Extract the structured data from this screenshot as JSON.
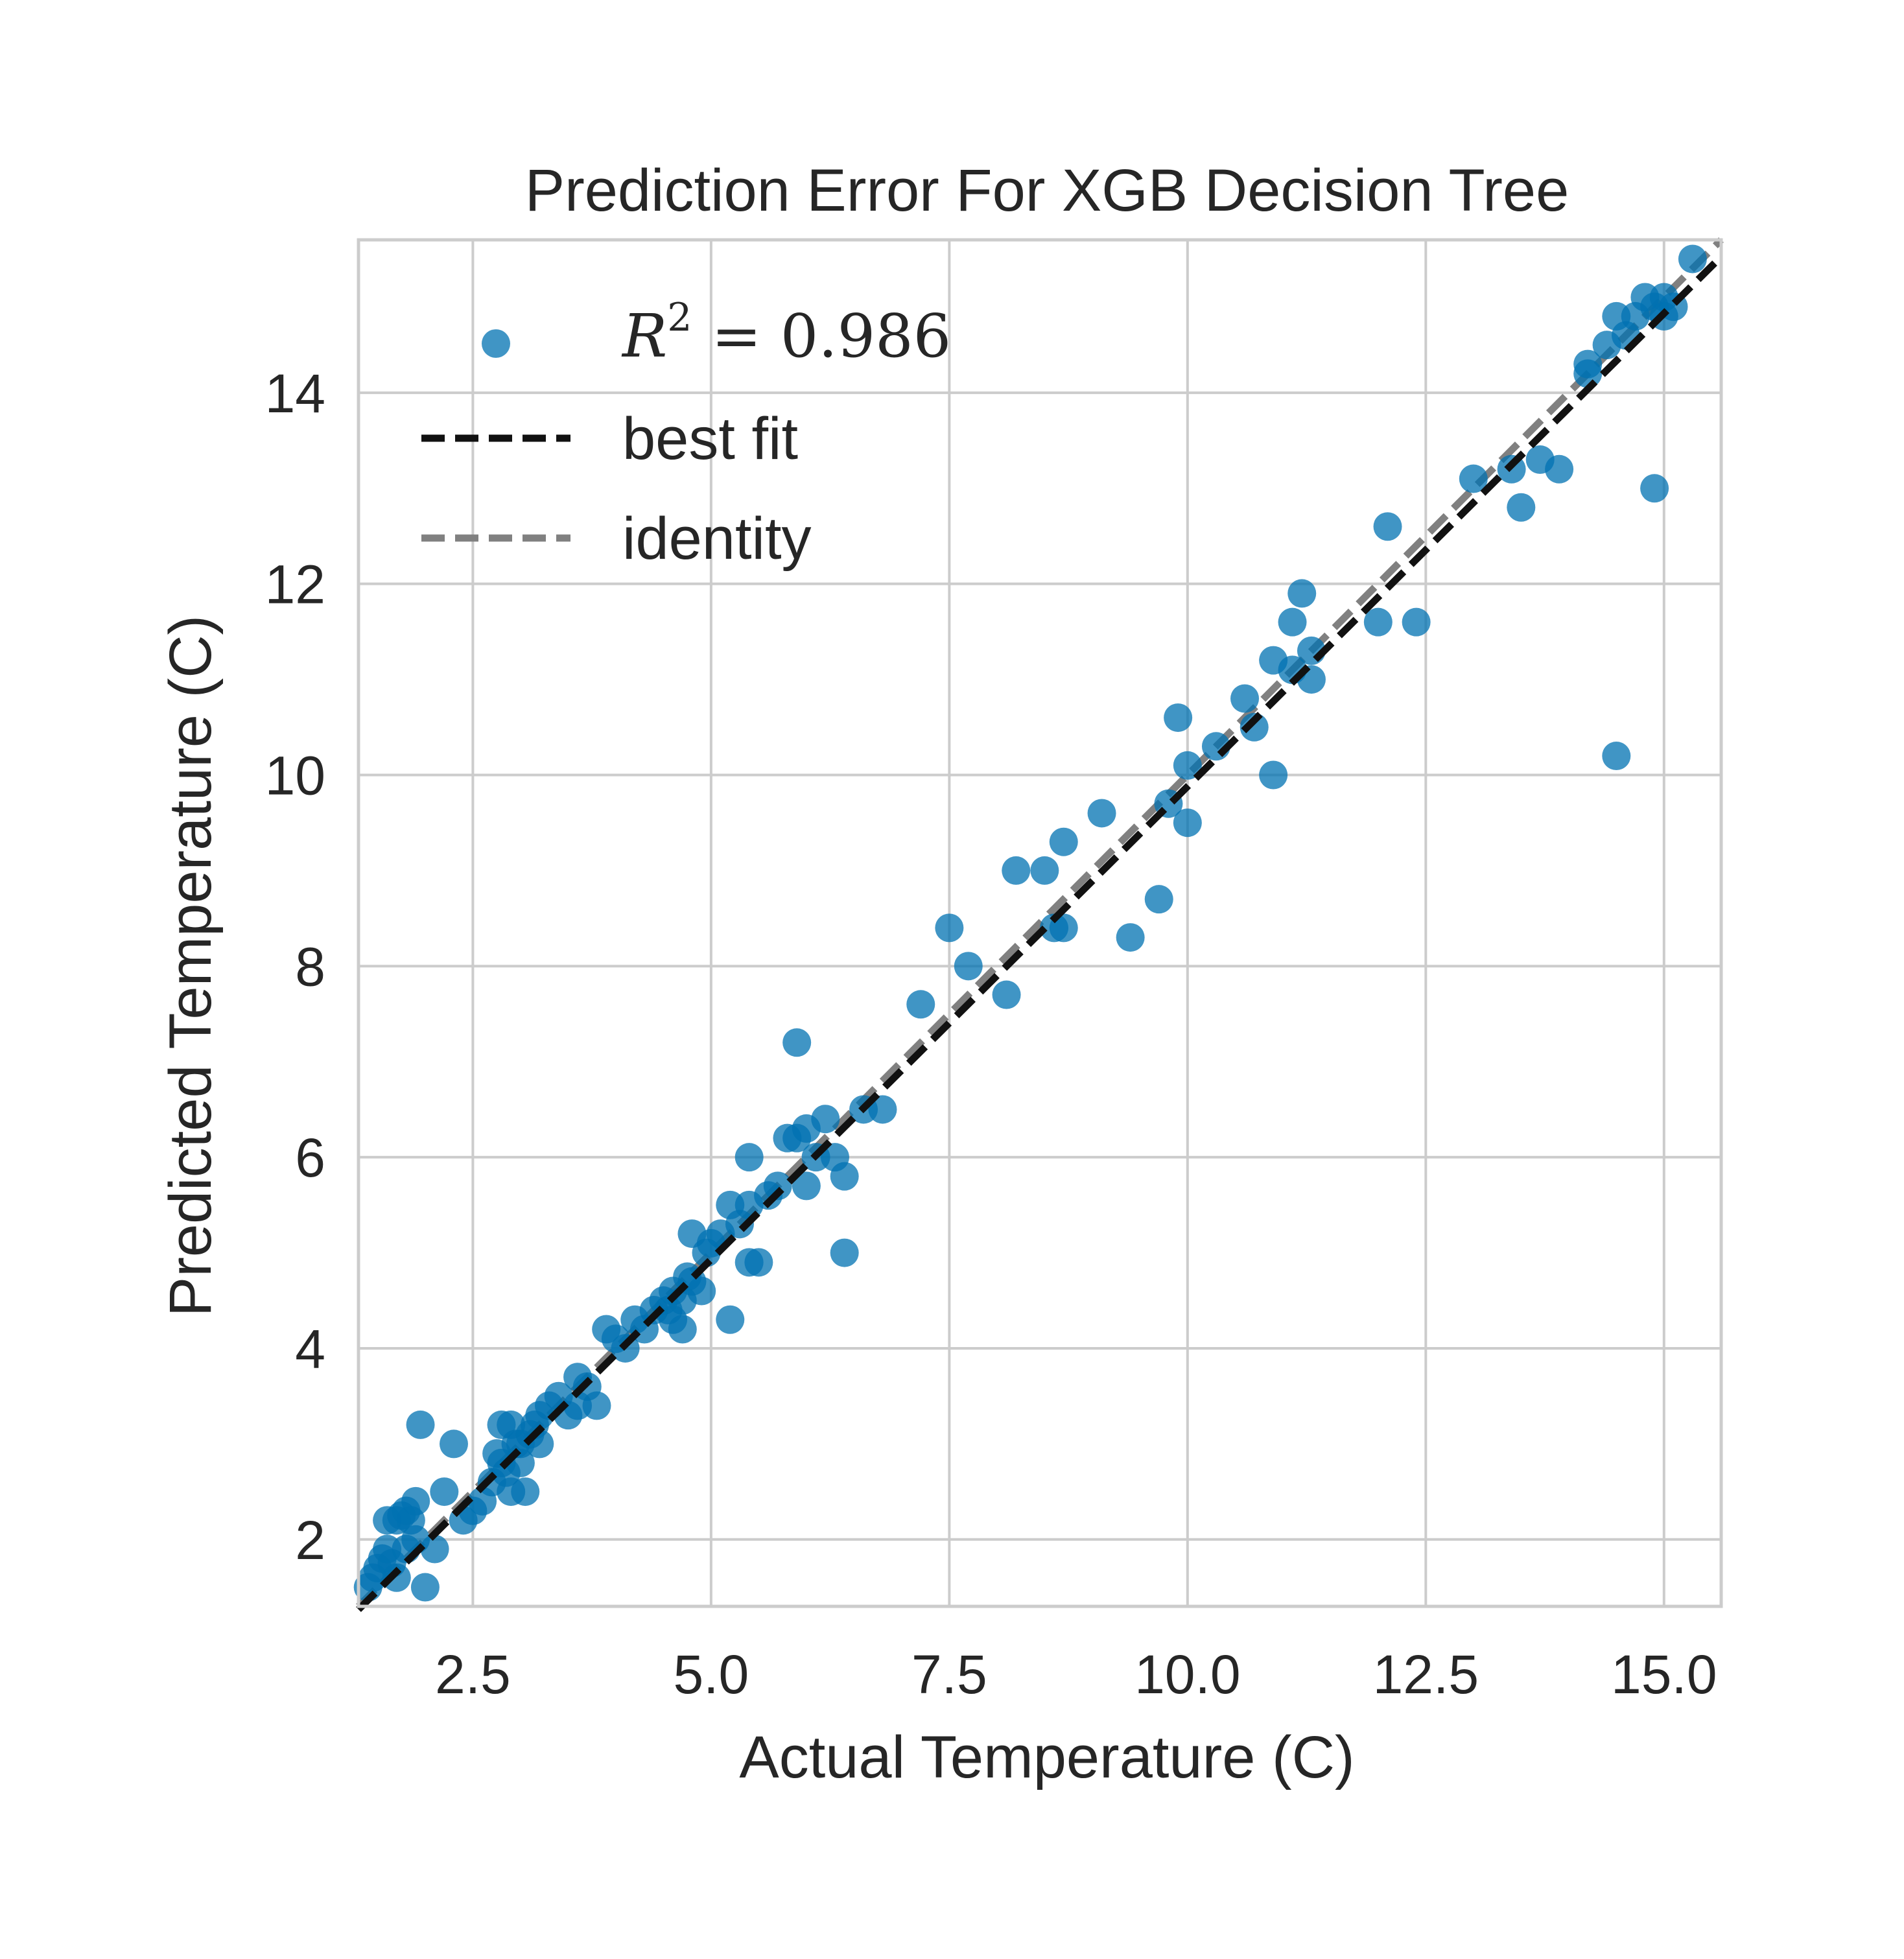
{
  "chart_data": {
    "type": "scatter",
    "title": "Prediction Error For XGB Decision Tree",
    "xlabel": "Actual Temperature (C)",
    "ylabel": "Predicted Temperature (C)",
    "xlim": [
      1.3,
      15.6
    ],
    "ylim": [
      1.3,
      15.6
    ],
    "xticks": [
      2.5,
      5.0,
      7.5,
      10.0,
      12.5,
      15.0
    ],
    "xtick_labels": [
      "2.5",
      "5.0",
      "7.5",
      "10.0",
      "12.5",
      "15.0"
    ],
    "yticks": [
      2,
      4,
      6,
      8,
      10,
      12,
      14
    ],
    "ytick_labels": [
      "2",
      "4",
      "6",
      "8",
      "10",
      "12",
      "14"
    ],
    "grid": true,
    "legend_position": "top-left",
    "colors": {
      "points": "#0072b2",
      "best_fit": "#111111",
      "identity": "#808080",
      "grid": "#cccccc"
    },
    "legend": {
      "r2_prefix": "R",
      "r2_power": "2",
      "r2_value": "= 0.986",
      "best_fit_label": "best fit",
      "identity_label": "identity"
    },
    "best_fit": {
      "slope": 0.99,
      "intercept": -0.02
    },
    "points": [
      [
        1.4,
        1.5
      ],
      [
        1.5,
        1.7
      ],
      [
        1.6,
        2.2
      ],
      [
        1.7,
        2.2
      ],
      [
        1.8,
        1.9
      ],
      [
        1.8,
        2.3
      ],
      [
        1.9,
        2.4
      ],
      [
        1.9,
        2.0
      ],
      [
        1.95,
        3.2
      ],
      [
        2.0,
        1.5
      ],
      [
        1.7,
        1.6
      ],
      [
        1.6,
        1.9
      ],
      [
        1.55,
        1.8
      ],
      [
        1.65,
        1.75
      ],
      [
        1.75,
        2.25
      ],
      [
        1.85,
        2.2
      ],
      [
        2.1,
        1.9
      ],
      [
        1.45,
        1.6
      ],
      [
        2.2,
        2.5
      ],
      [
        2.3,
        3.0
      ],
      [
        2.4,
        2.2
      ],
      [
        2.5,
        2.3
      ],
      [
        2.6,
        2.4
      ],
      [
        2.7,
        2.6
      ],
      [
        2.8,
        2.8
      ],
      [
        2.8,
        3.2
      ],
      [
        2.9,
        3.2
      ],
      [
        2.9,
        2.5
      ],
      [
        3.0,
        2.8
      ],
      [
        3.0,
        3.0
      ],
      [
        3.05,
        2.5
      ],
      [
        3.1,
        3.1
      ],
      [
        3.2,
        3.3
      ],
      [
        3.2,
        3.0
      ],
      [
        3.3,
        3.4
      ],
      [
        3.4,
        3.5
      ],
      [
        3.5,
        3.3
      ],
      [
        3.6,
        3.4
      ],
      [
        3.6,
        3.7
      ],
      [
        3.7,
        3.6
      ],
      [
        3.8,
        3.4
      ],
      [
        2.85,
        2.7
      ],
      [
        2.75,
        2.9
      ],
      [
        2.95,
        3.0
      ],
      [
        3.15,
        3.2
      ],
      [
        3.9,
        4.2
      ],
      [
        4.0,
        4.1
      ],
      [
        4.1,
        4.0
      ],
      [
        4.2,
        4.3
      ],
      [
        4.3,
        4.2
      ],
      [
        4.4,
        4.4
      ],
      [
        4.5,
        4.5
      ],
      [
        4.6,
        4.6
      ],
      [
        4.6,
        4.3
      ],
      [
        4.7,
        4.5
      ],
      [
        4.7,
        4.2
      ],
      [
        4.8,
        4.7
      ],
      [
        4.8,
        5.2
      ],
      [
        4.9,
        4.6
      ],
      [
        4.95,
        5.0
      ],
      [
        5.0,
        5.1
      ],
      [
        5.1,
        5.2
      ],
      [
        5.2,
        4.3
      ],
      [
        5.2,
        5.5
      ],
      [
        5.3,
        5.3
      ],
      [
        5.4,
        6.0
      ],
      [
        5.4,
        5.5
      ],
      [
        5.4,
        4.9
      ],
      [
        5.5,
        4.9
      ],
      [
        5.6,
        5.6
      ],
      [
        5.7,
        5.7
      ],
      [
        5.8,
        6.2
      ],
      [
        5.9,
        6.2
      ],
      [
        5.9,
        7.2
      ],
      [
        6.0,
        5.7
      ],
      [
        6.0,
        6.3
      ],
      [
        6.1,
        6.0
      ],
      [
        6.2,
        6.4
      ],
      [
        6.3,
        6.0
      ],
      [
        6.4,
        5.8
      ],
      [
        6.4,
        5.0
      ],
      [
        6.6,
        6.5
      ],
      [
        6.8,
        6.5
      ],
      [
        4.55,
        4.4
      ],
      [
        4.75,
        4.75
      ],
      [
        7.2,
        7.6
      ],
      [
        7.5,
        8.4
      ],
      [
        7.7,
        8.0
      ],
      [
        8.1,
        7.7
      ],
      [
        8.2,
        9.0
      ],
      [
        8.5,
        9.0
      ],
      [
        8.6,
        8.4
      ],
      [
        8.7,
        8.4
      ],
      [
        8.7,
        9.3
      ],
      [
        9.1,
        9.6
      ],
      [
        9.4,
        8.3
      ],
      [
        9.7,
        8.7
      ],
      [
        9.8,
        9.7
      ],
      [
        9.9,
        10.6
      ],
      [
        10.0,
        9.5
      ],
      [
        10.0,
        10.1
      ],
      [
        10.3,
        10.3
      ],
      [
        10.6,
        10.8
      ],
      [
        10.7,
        10.5
      ],
      [
        10.9,
        10.0
      ],
      [
        10.9,
        11.2
      ],
      [
        11.1,
        11.6
      ],
      [
        11.1,
        11.1
      ],
      [
        11.2,
        11.9
      ],
      [
        11.3,
        11.3
      ],
      [
        11.3,
        11.0
      ],
      [
        12.0,
        11.6
      ],
      [
        12.1,
        12.6
      ],
      [
        12.4,
        11.6
      ],
      [
        13.0,
        13.1
      ],
      [
        13.4,
        13.2
      ],
      [
        13.5,
        12.8
      ],
      [
        13.7,
        13.3
      ],
      [
        13.9,
        13.2
      ],
      [
        14.2,
        14.3
      ],
      [
        14.2,
        14.2
      ],
      [
        14.4,
        14.5
      ],
      [
        14.5,
        14.8
      ],
      [
        14.5,
        10.2
      ],
      [
        14.6,
        14.6
      ],
      [
        14.7,
        14.8
      ],
      [
        14.8,
        15.0
      ],
      [
        14.9,
        14.9
      ],
      [
        14.9,
        13.0
      ],
      [
        15.0,
        15.0
      ],
      [
        15.0,
        14.8
      ],
      [
        15.1,
        14.9
      ],
      [
        15.3,
        15.4
      ]
    ]
  }
}
